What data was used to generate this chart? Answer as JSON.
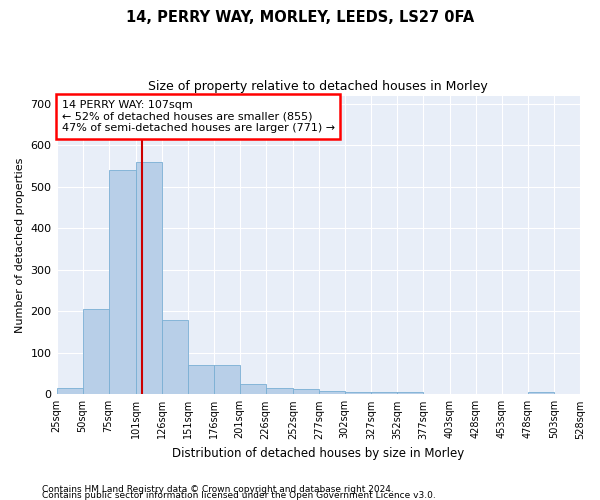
{
  "title1": "14, PERRY WAY, MORLEY, LEEDS, LS27 0FA",
  "title2": "Size of property relative to detached houses in Morley",
  "xlabel": "Distribution of detached houses by size in Morley",
  "ylabel": "Number of detached properties",
  "annotation_line1": "14 PERRY WAY: 107sqm",
  "annotation_line2": "← 52% of detached houses are smaller (855)",
  "annotation_line3": "47% of semi-detached houses are larger (771) →",
  "property_size": 107,
  "bar_color": "#b8cfe8",
  "bar_edge_color": "#7aafd4",
  "line_color": "#cc0000",
  "bg_color": "#e8eef8",
  "footnote1": "Contains HM Land Registry data © Crown copyright and database right 2024.",
  "footnote2": "Contains public sector information licensed under the Open Government Licence v3.0.",
  "bin_edges": [
    25,
    50,
    75,
    101,
    126,
    151,
    176,
    201,
    226,
    252,
    277,
    302,
    327,
    352,
    377,
    403,
    428,
    453,
    478,
    503,
    528
  ],
  "bar_heights": [
    15,
    205,
    540,
    560,
    180,
    70,
    70,
    25,
    15,
    12,
    8,
    6,
    5,
    5,
    0,
    0,
    0,
    0,
    5,
    0,
    0
  ],
  "ylim": [
    0,
    720
  ],
  "yticks": [
    0,
    100,
    200,
    300,
    400,
    500,
    600,
    700
  ]
}
